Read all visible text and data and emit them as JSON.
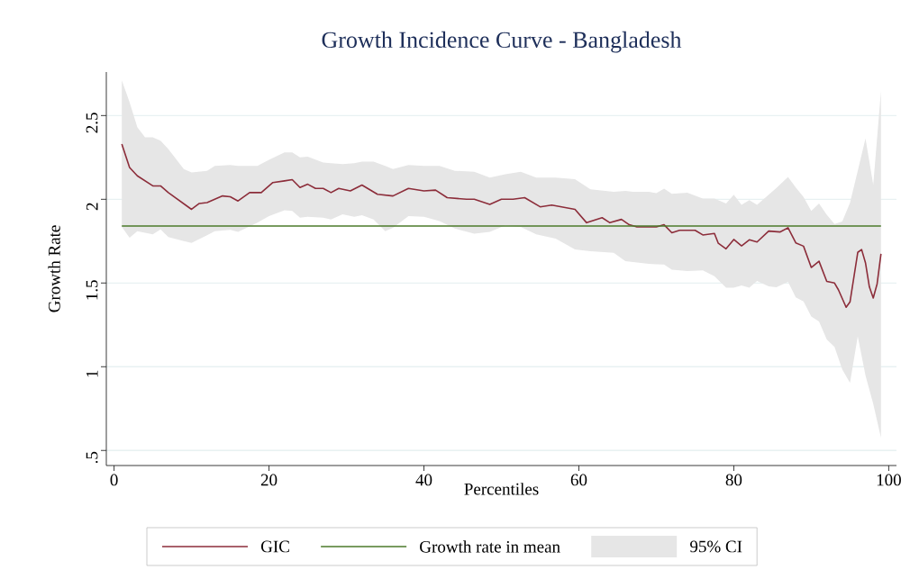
{
  "chart_data": {
    "type": "line",
    "title": "Growth Incidence Curve - Bangladesh",
    "xlabel": "Percentiles",
    "ylabel": "Growth Rate",
    "xlim": [
      -1,
      101
    ],
    "ylim": [
      0.41,
      2.76
    ],
    "xticks": [
      0,
      20,
      40,
      60,
      80,
      100
    ],
    "yticks": [
      {
        "value": 0.5,
        "label": ".5"
      },
      1,
      1.5,
      2,
      2.5
    ],
    "grid": "y",
    "legend": "bottom",
    "line_style": "solid",
    "series": [
      {
        "name": "GIC",
        "color": "#8c2d3a",
        "type": "line",
        "x": [
          1,
          2,
          3,
          4,
          5,
          6,
          7,
          10,
          11,
          12,
          14,
          15,
          16,
          17.5,
          19,
          20.5,
          22,
          23,
          24,
          25,
          26,
          27,
          28,
          29,
          30.5,
          32,
          34,
          36,
          38,
          40,
          41.5,
          43,
          45.5,
          46.5,
          48.5,
          50,
          51.5,
          53,
          55,
          56.5,
          59.5,
          61,
          63,
          64,
          65.5,
          66.5,
          67.5,
          70,
          71,
          72,
          73,
          75,
          76,
          77.5,
          78,
          79,
          80,
          81,
          82,
          83,
          84.5,
          86,
          87,
          88,
          89,
          90,
          91,
          92,
          93,
          93.5,
          94.5,
          95,
          96,
          96.5,
          97,
          97.5,
          98,
          98.5,
          99
        ],
        "values": [
          2.33,
          2.19,
          2.14,
          2.11,
          2.08,
          2.08,
          2.04,
          1.94,
          1.975,
          1.98,
          2.02,
          2.015,
          1.99,
          2.04,
          2.04,
          2.1,
          2.11,
          2.117,
          2.07,
          2.09,
          2.065,
          2.065,
          2.04,
          2.065,
          2.05,
          2.085,
          2.03,
          2.02,
          2.065,
          2.05,
          2.055,
          2.01,
          2.0,
          2.0,
          1.97,
          2.0,
          2.0,
          2.01,
          1.955,
          1.965,
          1.94,
          1.86,
          1.89,
          1.86,
          1.88,
          1.848,
          1.835,
          1.835,
          1.848,
          1.8,
          1.815,
          1.815,
          1.787,
          1.796,
          1.737,
          1.704,
          1.76,
          1.722,
          1.758,
          1.745,
          1.81,
          1.805,
          1.83,
          1.74,
          1.72,
          1.593,
          1.63,
          1.51,
          1.5,
          1.46,
          1.355,
          1.387,
          1.683,
          1.7,
          1.62,
          1.477,
          1.41,
          1.495,
          1.674
        ]
      },
      {
        "name": "Growth rate in mean",
        "color": "#4b7a2a",
        "type": "line",
        "x": [
          1,
          99
        ],
        "values": [
          1.84,
          1.84
        ]
      },
      {
        "name": "95% CI",
        "color": "#e6e6e6",
        "type": "area",
        "x": [
          1,
          2,
          3,
          4,
          5,
          6,
          7,
          9,
          10,
          12,
          13,
          15,
          16,
          18.5,
          20,
          22,
          23,
          24,
          25,
          27,
          28,
          29.5,
          31,
          32,
          33.5,
          35,
          36,
          38,
          40,
          42,
          44,
          46.5,
          48.5,
          50.5,
          52.5,
          54.5,
          57,
          59.5,
          61.5,
          64.5,
          66,
          67,
          69,
          70,
          71,
          72,
          74,
          76,
          77.5,
          79,
          80,
          81,
          82,
          83,
          84.5,
          85.5,
          87,
          88,
          89,
          90,
          91,
          92,
          93,
          94,
          95,
          96,
          97,
          98,
          99
        ],
        "values": [
          null,
          null,
          null,
          null,
          null,
          null,
          null,
          null,
          null,
          null,
          null,
          null,
          null,
          null,
          null,
          null,
          null,
          null,
          null,
          null,
          null,
          null,
          null,
          null,
          null,
          null,
          null,
          null,
          null,
          null,
          null,
          null,
          null,
          null,
          null,
          null,
          null,
          null,
          null,
          null,
          null,
          null,
          null,
          null,
          null,
          null,
          null,
          null,
          null,
          null,
          null,
          null,
          null,
          null,
          null,
          null,
          null,
          null,
          null,
          null,
          null,
          null,
          null,
          null,
          null,
          null,
          null,
          null,
          null
        ],
        "upper": [
          2.71,
          2.58,
          2.43,
          2.37,
          2.37,
          2.35,
          2.3,
          2.18,
          2.16,
          2.17,
          2.2,
          2.205,
          2.2,
          2.2,
          2.235,
          2.28,
          2.28,
          2.25,
          2.255,
          2.22,
          2.215,
          2.21,
          2.215,
          2.225,
          2.225,
          2.2,
          2.18,
          2.205,
          2.2,
          2.2,
          2.17,
          2.165,
          2.13,
          2.15,
          2.165,
          2.13,
          2.13,
          2.12,
          2.06,
          2.045,
          2.05,
          2.045,
          2.045,
          2.036,
          2.063,
          2.032,
          2.04,
          2.005,
          2.005,
          1.975,
          2.027,
          1.967,
          1.995,
          1.967,
          2.027,
          2.068,
          2.134,
          2.07,
          2.014,
          1.93,
          1.975,
          1.907,
          1.853,
          1.867,
          1.979,
          2.17,
          2.364,
          2.086,
          2.647
        ],
        "lower": [
          1.835,
          1.77,
          1.81,
          1.8,
          1.79,
          1.82,
          1.775,
          1.75,
          1.74,
          1.785,
          1.81,
          1.817,
          1.805,
          1.86,
          1.9,
          1.935,
          1.93,
          1.89,
          1.895,
          1.89,
          1.88,
          1.91,
          1.895,
          1.905,
          1.88,
          1.81,
          1.83,
          1.9,
          1.895,
          1.87,
          1.825,
          1.795,
          1.805,
          1.845,
          1.835,
          1.79,
          1.765,
          1.7,
          1.69,
          1.68,
          1.63,
          1.625,
          1.615,
          1.612,
          1.611,
          1.58,
          1.572,
          1.575,
          1.54,
          1.472,
          1.472,
          1.486,
          1.472,
          1.513,
          1.48,
          1.475,
          1.507,
          1.414,
          1.39,
          1.3,
          1.27,
          1.163,
          1.118,
          0.984,
          0.903,
          1.181,
          0.948,
          0.778,
          0.575
        ]
      }
    ]
  }
}
